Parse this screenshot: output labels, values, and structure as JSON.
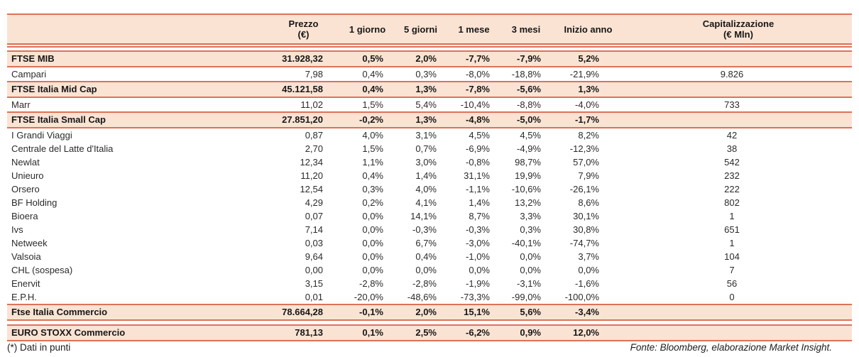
{
  "table": {
    "columns": {
      "name": "",
      "prezzo_l1": "Prezzo",
      "prezzo_l2": "(€)",
      "d1": "1 giorno",
      "d5": "5 giorni",
      "m1": "1 mese",
      "m3": "3 mesi",
      "ytd": "Inizio anno",
      "cap_l1": "Capitalizzazione",
      "cap_l2": "(€ Mln)"
    },
    "rows": [
      {
        "style": "index",
        "name": "FTSE MIB",
        "prezzo": "31.928,32",
        "d1": "0,5%",
        "d5": "2,0%",
        "m1": "-7,7%",
        "m3": "-7,9%",
        "ytd": "5,2%",
        "cap": ""
      },
      {
        "style": "stock",
        "name": "Campari",
        "prezzo": "7,98",
        "d1": "0,4%",
        "d5": "0,3%",
        "m1": "-8,0%",
        "m3": "-18,8%",
        "ytd": "-21,9%",
        "cap": "9.826"
      },
      {
        "style": "index",
        "name": "FTSE Italia Mid Cap",
        "prezzo": "45.121,58",
        "d1": "0,4%",
        "d5": "1,3%",
        "m1": "-7,8%",
        "m3": "-5,6%",
        "ytd": "1,3%",
        "cap": ""
      },
      {
        "style": "stock",
        "name": "Marr",
        "prezzo": "11,02",
        "d1": "1,5%",
        "d5": "5,4%",
        "m1": "-10,4%",
        "m3": "-8,8%",
        "ytd": "-4,0%",
        "cap": "733"
      },
      {
        "style": "index",
        "name": "FTSE Italia Small Cap",
        "prezzo": "27.851,20",
        "d1": "-0,2%",
        "d5": "1,3%",
        "m1": "-4,8%",
        "m3": "-5,0%",
        "ytd": "-1,7%",
        "cap": ""
      },
      {
        "style": "stock",
        "name": "I Grandi Viaggi",
        "prezzo": "0,87",
        "d1": "4,0%",
        "d5": "3,1%",
        "m1": "4,5%",
        "m3": "4,5%",
        "ytd": "8,2%",
        "cap": "42"
      },
      {
        "style": "stock",
        "name": "Centrale del Latte d'Italia",
        "prezzo": "2,70",
        "d1": "1,5%",
        "d5": "0,7%",
        "m1": "-6,9%",
        "m3": "-4,9%",
        "ytd": "-12,3%",
        "cap": "38"
      },
      {
        "style": "stock",
        "name": "Newlat",
        "prezzo": "12,34",
        "d1": "1,1%",
        "d5": "3,0%",
        "m1": "-0,8%",
        "m3": "98,7%",
        "ytd": "57,0%",
        "cap": "542"
      },
      {
        "style": "stock",
        "name": "Unieuro",
        "prezzo": "11,20",
        "d1": "0,4%",
        "d5": "1,4%",
        "m1": "31,1%",
        "m3": "19,9%",
        "ytd": "7,9%",
        "cap": "232"
      },
      {
        "style": "stock",
        "name": "Orsero",
        "prezzo": "12,54",
        "d1": "0,3%",
        "d5": "4,0%",
        "m1": "-1,1%",
        "m3": "-10,6%",
        "ytd": "-26,1%",
        "cap": "222"
      },
      {
        "style": "stock",
        "name": "BF Holding",
        "prezzo": "4,29",
        "d1": "0,2%",
        "d5": "4,1%",
        "m1": "1,4%",
        "m3": "13,2%",
        "ytd": "8,6%",
        "cap": "802"
      },
      {
        "style": "stock",
        "name": "Bioera",
        "prezzo": "0,07",
        "d1": "0,0%",
        "d5": "14,1%",
        "m1": "8,7%",
        "m3": "3,3%",
        "ytd": "30,1%",
        "cap": "1"
      },
      {
        "style": "stock",
        "name": "Ivs",
        "prezzo": "7,14",
        "d1": "0,0%",
        "d5": "-0,3%",
        "m1": "-0,3%",
        "m3": "0,3%",
        "ytd": "30,8%",
        "cap": "651"
      },
      {
        "style": "stock",
        "name": "Netweek",
        "prezzo": "0,03",
        "d1": "0,0%",
        "d5": "6,7%",
        "m1": "-3,0%",
        "m3": "-40,1%",
        "ytd": "-74,7%",
        "cap": "1"
      },
      {
        "style": "stock",
        "name": "Valsoia",
        "prezzo": "9,64",
        "d1": "0,0%",
        "d5": "0,4%",
        "m1": "-1,0%",
        "m3": "0,0%",
        "ytd": "3,7%",
        "cap": "104"
      },
      {
        "style": "stock",
        "name": "CHL (sospesa)",
        "prezzo": "0,00",
        "d1": "0,0%",
        "d5": "0,0%",
        "m1": "0,0%",
        "m3": "0,0%",
        "ytd": "0,0%",
        "cap": "7"
      },
      {
        "style": "stock",
        "name": "Enervit",
        "prezzo": "3,15",
        "d1": "-2,8%",
        "d5": "-2,8%",
        "m1": "-1,9%",
        "m3": "-3,1%",
        "ytd": "-1,6%",
        "cap": "56"
      },
      {
        "style": "stock",
        "name": "E.P.H.",
        "prezzo": "0,01",
        "d1": "-20,0%",
        "d5": "-48,6%",
        "m1": "-73,3%",
        "m3": "-99,0%",
        "ytd": "-100,0%",
        "cap": "0"
      },
      {
        "style": "index",
        "name": "Ftse Italia Commercio",
        "prezzo": "78.664,28",
        "d1": "-0,1%",
        "d5": "2,0%",
        "m1": "15,1%",
        "m3": "5,6%",
        "ytd": "-3,4%",
        "cap": ""
      },
      {
        "style": "index",
        "gap_before": true,
        "name": "EURO STOXX Commercio",
        "prezzo": "781,13",
        "d1": "0,1%",
        "d5": "2,5%",
        "m1": "-6,2%",
        "m3": "0,9%",
        "ytd": "12,0%",
        "cap": ""
      }
    ]
  },
  "footer": {
    "note": "(*) Dati in punti",
    "source": "Fonte: Bloomberg, elaborazione Market Insight."
  },
  "colors": {
    "rule_salmon": "#DD7258",
    "row_fill_peach": "#FAE3D3",
    "text": "#1e1e1e"
  }
}
